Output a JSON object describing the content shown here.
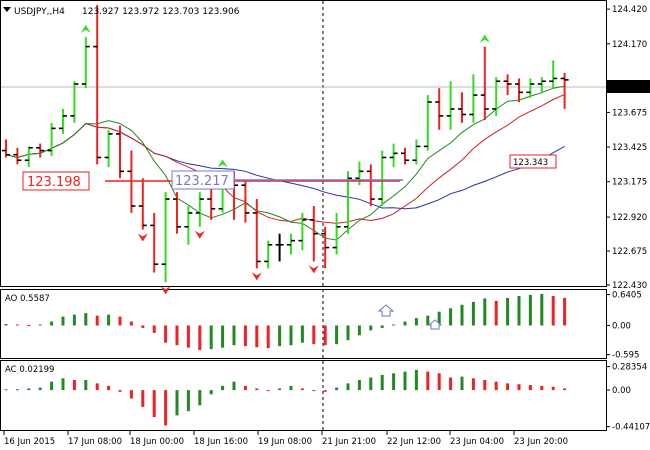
{
  "header": {
    "symbol_label": "USDJPY,,H4",
    "ohlc": "123.927 123.972 123.703 123.906"
  },
  "colors": {
    "bull": "#33dd22",
    "bear": "#ee2222",
    "neutral": "#000000",
    "ma_red": "#cc2222",
    "ma_blue": "#2233aa",
    "ma_green": "#228822",
    "ao_green": "#228822",
    "ao_red": "#ee2222",
    "current_bg": "#000000"
  },
  "annotations": {
    "support_label": "123.198",
    "mid_label": "123.217",
    "target_label": "123.343",
    "current_price": "123.906"
  },
  "chart_data": [
    {
      "type": "candlestick",
      "y_range": [
        122.43,
        124.45
      ],
      "y_ticks": [
        "124.420",
        "124.170",
        "123.906",
        "123.675",
        "123.425",
        "123.175",
        "122.920",
        "122.675",
        "122.430"
      ],
      "x_labels": [
        "16 Jun 2015",
        "17 Jun 08:00",
        "18 Jun 00:00",
        "18 Jun 16:00",
        "19 Jun 08:00",
        "21 Jun 21:00",
        "22 Jun 12:00",
        "23 Jun 04:00",
        "23 Jun 20:00"
      ],
      "candles": [
        [
          123.4,
          123.48,
          123.35,
          123.37
        ],
        [
          123.37,
          123.42,
          123.3,
          123.33
        ],
        [
          123.33,
          123.43,
          123.28,
          123.42
        ],
        [
          123.42,
          123.45,
          123.35,
          123.4
        ],
        [
          123.4,
          123.6,
          123.36,
          123.56
        ],
        [
          123.56,
          123.7,
          123.52,
          123.65
        ],
        [
          123.65,
          123.9,
          123.6,
          123.88
        ],
        [
          123.88,
          124.22,
          123.85,
          124.15
        ],
        [
          124.15,
          124.45,
          123.3,
          123.35
        ],
        [
          123.35,
          123.55,
          123.28,
          123.52
        ],
        [
          123.52,
          123.58,
          123.2,
          123.25
        ],
        [
          123.25,
          123.4,
          122.95,
          123.0
        ],
        [
          123.0,
          123.2,
          122.83,
          122.86
        ],
        [
          122.86,
          122.95,
          122.52,
          122.58
        ],
        [
          122.58,
          123.1,
          122.45,
          123.05
        ],
        [
          123.05,
          123.1,
          122.8,
          122.85
        ],
        [
          122.85,
          123.0,
          122.72,
          122.95
        ],
        [
          122.95,
          123.1,
          122.85,
          123.05
        ],
        [
          123.05,
          123.2,
          122.9,
          122.98
        ],
        [
          122.98,
          123.25,
          122.95,
          123.2
        ],
        [
          123.2,
          123.25,
          122.9,
          123.15
        ],
        [
          123.15,
          123.18,
          122.88,
          122.95
        ],
        [
          122.95,
          123.05,
          122.55,
          122.6
        ],
        [
          122.6,
          122.75,
          122.55,
          122.72
        ],
        [
          122.72,
          122.8,
          122.6,
          122.72
        ],
        [
          122.72,
          122.8,
          122.65,
          122.75
        ],
        [
          122.75,
          122.95,
          122.68,
          122.9
        ],
        [
          122.9,
          123.0,
          122.6,
          122.8
        ],
        [
          122.8,
          122.85,
          122.55,
          122.7
        ],
        [
          122.7,
          122.95,
          122.65,
          122.85
        ],
        [
          122.85,
          123.25,
          122.8,
          123.2
        ],
        [
          123.2,
          123.32,
          123.15,
          123.25
        ],
        [
          123.25,
          123.3,
          123.0,
          123.05
        ],
        [
          123.05,
          123.4,
          123.0,
          123.35
        ],
        [
          123.35,
          123.45,
          123.28,
          123.38
        ],
        [
          123.38,
          123.42,
          123.3,
          123.33
        ],
        [
          123.33,
          123.48,
          123.3,
          123.43
        ],
        [
          123.43,
          123.8,
          123.4,
          123.75
        ],
        [
          123.75,
          123.85,
          123.55,
          123.65
        ],
        [
          123.65,
          123.9,
          123.55,
          123.7
        ],
        [
          123.7,
          123.82,
          123.6,
          123.66
        ],
        [
          123.66,
          123.95,
          123.6,
          123.8
        ],
        [
          123.8,
          124.15,
          123.62,
          123.7
        ],
        [
          123.7,
          123.93,
          123.65,
          123.9
        ],
        [
          123.9,
          123.95,
          123.8,
          123.88
        ],
        [
          123.88,
          123.92,
          123.75,
          123.82
        ],
        [
          123.82,
          123.92,
          123.78,
          123.88
        ],
        [
          123.88,
          123.93,
          123.82,
          123.9
        ],
        [
          123.9,
          124.05,
          123.85,
          123.92
        ],
        [
          123.92,
          123.96,
          123.7,
          123.91
        ]
      ],
      "markers": [
        {
          "i": 7,
          "dir": "up",
          "color": "green"
        },
        {
          "i": 12,
          "dir": "down",
          "color": "red"
        },
        {
          "i": 14,
          "dir": "down",
          "color": "red"
        },
        {
          "i": 17,
          "dir": "down",
          "color": "red"
        },
        {
          "i": 19,
          "dir": "up",
          "color": "green"
        },
        {
          "i": 22,
          "dir": "down",
          "color": "red"
        },
        {
          "i": 27,
          "dir": "down",
          "color": "red"
        },
        {
          "i": 42,
          "dir": "up",
          "color": "green"
        }
      ]
    },
    {
      "type": "bar",
      "name": "AO",
      "value_label": "0.5587",
      "y_range": [
        -0.62,
        0.68
      ],
      "y_ticks": [
        "0.6405",
        "0.00",
        "-0.595"
      ],
      "values": [
        0.03,
        0.02,
        0.01,
        0.02,
        0.08,
        0.18,
        0.22,
        0.25,
        0.2,
        0.22,
        0.18,
        0.08,
        -0.05,
        -0.15,
        -0.35,
        -0.4,
        -0.45,
        -0.5,
        -0.48,
        -0.45,
        -0.4,
        -0.42,
        -0.44,
        -0.46,
        -0.42,
        -0.4,
        -0.35,
        -0.38,
        -0.4,
        -0.38,
        -0.3,
        -0.2,
        -0.1,
        -0.05,
        0.02,
        0.08,
        0.15,
        0.2,
        0.28,
        0.35,
        0.42,
        0.48,
        0.55,
        0.5,
        0.56,
        0.6,
        0.62,
        0.64,
        0.6,
        0.56
      ]
    },
    {
      "type": "bar",
      "name": "AC",
      "value_label": "0.02199",
      "y_range": [
        -0.45,
        0.31
      ],
      "y_ticks": [
        "0.28354",
        "0.00",
        "-0.44107"
      ],
      "values": [
        0.01,
        0.01,
        0.02,
        0.03,
        0.1,
        0.14,
        0.12,
        0.12,
        0.08,
        0.05,
        -0.02,
        -0.1,
        -0.2,
        -0.32,
        -0.42,
        -0.3,
        -0.25,
        -0.18,
        -0.05,
        0.05,
        0.1,
        0.05,
        0.02,
        0.0,
        0.02,
        0.05,
        0.02,
        0.0,
        -0.02,
        0.03,
        0.08,
        0.12,
        0.15,
        0.18,
        0.2,
        0.22,
        0.24,
        0.22,
        0.2,
        0.15,
        0.16,
        0.14,
        0.12,
        0.1,
        0.08,
        0.07,
        0.06,
        0.05,
        0.04,
        0.02
      ]
    }
  ]
}
